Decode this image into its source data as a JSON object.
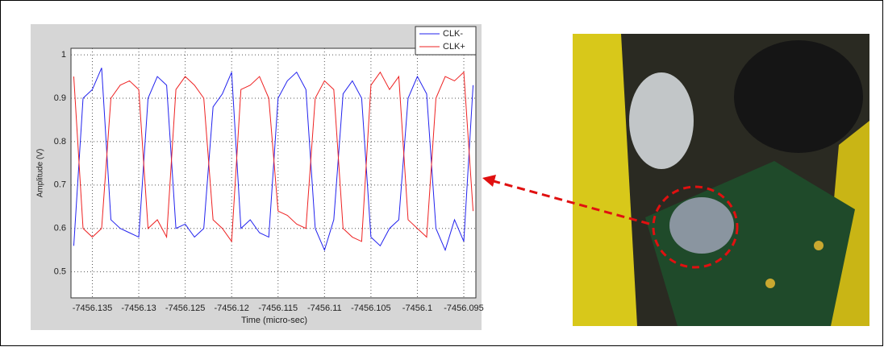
{
  "chart_data": {
    "type": "line",
    "ylabel": "Amplitude (V)",
    "xlabel": "Time (micro-sec)",
    "x": [
      -7456.137,
      -7456.136,
      -7456.135,
      -7456.134,
      -7456.133,
      -7456.132,
      -7456.131,
      -7456.13,
      -7456.129,
      -7456.128,
      -7456.127,
      -7456.126,
      -7456.125,
      -7456.124,
      -7456.123,
      -7456.122,
      -7456.121,
      -7456.12,
      -7456.119,
      -7456.118,
      -7456.117,
      -7456.116,
      -7456.115,
      -7456.114,
      -7456.113,
      -7456.112,
      -7456.111,
      -7456.11,
      -7456.109,
      -7456.108,
      -7456.107,
      -7456.106,
      -7456.105,
      -7456.104,
      -7456.103,
      -7456.102,
      -7456.101,
      -7456.1,
      -7456.099,
      -7456.098,
      -7456.097,
      -7456.096,
      -7456.095,
      -7456.094
    ],
    "series": [
      {
        "name": "CLK-",
        "color": "#2222ee",
        "values": [
          0.56,
          0.9,
          0.92,
          0.97,
          0.62,
          0.6,
          0.59,
          0.58,
          0.9,
          0.95,
          0.93,
          0.6,
          0.61,
          0.58,
          0.6,
          0.88,
          0.91,
          0.96,
          0.6,
          0.62,
          0.59,
          0.58,
          0.9,
          0.94,
          0.96,
          0.92,
          0.6,
          0.55,
          0.62,
          0.91,
          0.94,
          0.9,
          0.58,
          0.56,
          0.6,
          0.62,
          0.9,
          0.95,
          0.91,
          0.6,
          0.55,
          0.62,
          0.57,
          0.93
        ]
      },
      {
        "name": "CLK+",
        "color": "#ee2222",
        "values": [
          0.95,
          0.6,
          0.58,
          0.6,
          0.9,
          0.93,
          0.94,
          0.92,
          0.6,
          0.62,
          0.58,
          0.92,
          0.95,
          0.93,
          0.9,
          0.62,
          0.6,
          0.57,
          0.92,
          0.93,
          0.95,
          0.9,
          0.64,
          0.63,
          0.61,
          0.6,
          0.9,
          0.94,
          0.92,
          0.6,
          0.58,
          0.57,
          0.93,
          0.96,
          0.92,
          0.95,
          0.62,
          0.6,
          0.58,
          0.9,
          0.95,
          0.94,
          0.96,
          0.64
        ]
      }
    ],
    "xlim": [
      -7456.1373,
      -7456.0937
    ],
    "xticks": [
      -7456.135,
      -7456.13,
      -7456.125,
      -7456.12,
      -7456.115,
      -7456.11,
      -7456.105,
      -7456.1,
      -7456.095
    ],
    "ylim": [
      0.44,
      1.015
    ],
    "yticks": [
      0.5,
      0.6,
      0.7,
      0.8,
      0.9,
      1
    ],
    "grid": true,
    "legend": "upper right"
  }
}
